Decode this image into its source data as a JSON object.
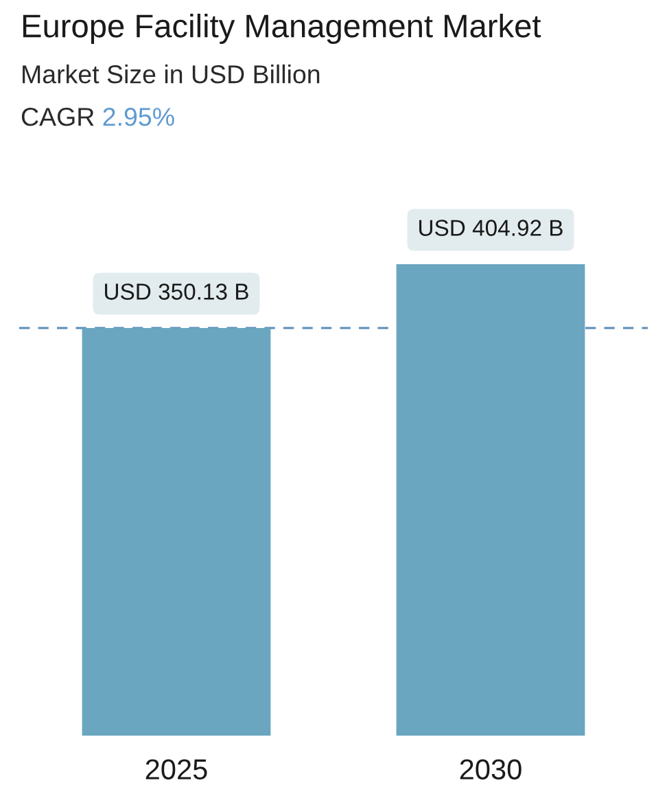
{
  "chart_data": {
    "type": "bar",
    "title": "Europe Facility Management Market",
    "subtitle": "Market Size in USD Billion",
    "annotations": [
      "CAGR 2.95%"
    ],
    "categories": [
      "2025",
      "2030"
    ],
    "values": [
      350.13,
      404.92
    ],
    "value_labels": [
      "USD 350.13 B",
      "USD 404.92 B"
    ],
    "color": "#6aa6c0",
    "ylim": [
      0,
      455
    ],
    "ref_lines": [
      {
        "axis": "y",
        "value": 350.13,
        "color": "#5b8db8",
        "line_style": "dashed"
      }
    ],
    "tick_labels": "x"
  }
}
